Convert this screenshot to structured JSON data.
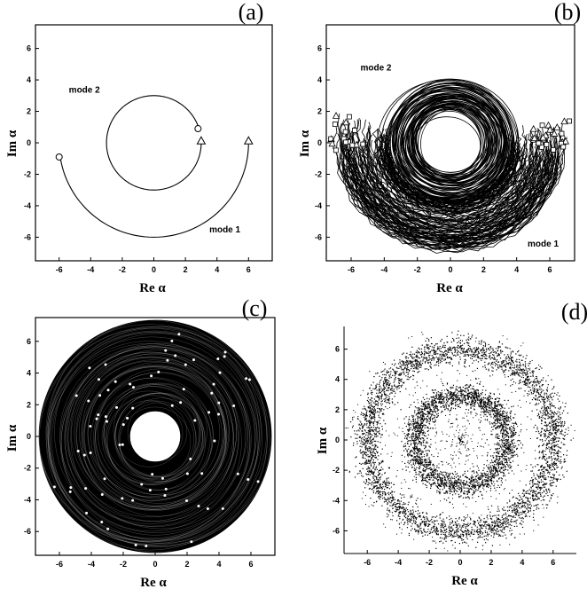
{
  "chart_data": [
    {
      "type": "line",
      "panel": "(a)",
      "xlabel": "Re α",
      "ylabel": "Im α",
      "xlim": [
        -7.5,
        7.5
      ],
      "ylim": [
        -7.5,
        7.5
      ],
      "xticks": [
        -6,
        -4,
        -2,
        0,
        2,
        4,
        6
      ],
      "yticks": [
        -6,
        -4,
        -2,
        0,
        2,
        4,
        6
      ],
      "series": [
        {
          "name": "mode 2",
          "shape": "arc",
          "center": [
            0,
            0
          ],
          "radius": 3,
          "start_deg": 20,
          "end_deg": 360,
          "start_marker": {
            "x": 2.8,
            "y": 0.9,
            "symbol": "circle"
          },
          "end_marker": {
            "x": 3.0,
            "y": 0.1,
            "symbol": "triangle"
          }
        },
        {
          "name": "mode 1",
          "shape": "arc",
          "center": [
            0,
            0
          ],
          "radius": 6,
          "start_deg": 189,
          "end_deg": 360,
          "start_marker": {
            "x": -6.0,
            "y": -0.9,
            "symbol": "circle"
          },
          "end_marker": {
            "x": 6.0,
            "y": 0.1,
            "symbol": "triangle"
          }
        }
      ],
      "annotations": [
        {
          "text": "mode 2",
          "x": -4.4,
          "y": 3.2
        },
        {
          "text": "mode 1",
          "x": 4.5,
          "y": -5.7
        }
      ]
    },
    {
      "type": "line",
      "panel": "(b)",
      "xlabel": "Re α",
      "ylabel": "Im α",
      "xlim": [
        -7.5,
        7.5
      ],
      "ylim": [
        -7.5,
        7.5
      ],
      "xticks": [
        -6,
        -4,
        -2,
        0,
        2,
        4,
        6
      ],
      "yticks": [
        -6,
        -4,
        -2,
        0,
        2,
        4,
        6
      ],
      "series": [
        {
          "name": "mode 2",
          "shape": "dense ring",
          "center": [
            0,
            0
          ],
          "inner_radius": 1.8,
          "outer_radius": 4.2
        },
        {
          "name": "mode 1",
          "shape": "dense lower band",
          "center": [
            0,
            0
          ],
          "inner_radius": 3.6,
          "outer_radius": 7.0,
          "from_deg": 180,
          "to_deg": 360
        }
      ],
      "annotations": [
        {
          "text": "mode 2",
          "x": -4.5,
          "y": 4.6
        },
        {
          "text": "mode 1",
          "x": 5.6,
          "y": -6.6
        }
      ]
    },
    {
      "type": "line",
      "panel": "(c)",
      "xlabel": "Re α",
      "ylabel": "Im α",
      "xlim": [
        -7.5,
        7.5
      ],
      "ylim": [
        -7.5,
        7.5
      ],
      "xticks": [
        -6,
        -4,
        -2,
        0,
        2,
        4,
        6
      ],
      "yticks": [
        -6,
        -4,
        -2,
        0,
        2,
        4,
        6
      ],
      "series": [
        {
          "shape": "dense filled annulus",
          "center": [
            0,
            0
          ],
          "inner_radius": 1.6,
          "outer_radius": 7.4
        }
      ]
    },
    {
      "type": "scatter",
      "panel": "(d)",
      "xlabel": "Re α",
      "ylabel": "Im α",
      "xlim": [
        -7.5,
        7.5
      ],
      "ylim": [
        -7.5,
        7.5
      ],
      "xticks": [
        -6,
        -4,
        -2,
        0,
        2,
        4,
        6
      ],
      "yticks": [
        -6,
        -4,
        -2,
        0,
        2,
        4,
        6
      ],
      "series": [
        {
          "shape": "point ring",
          "center": [
            0,
            0
          ],
          "mean_radius": 3.0,
          "spread": 0.7
        },
        {
          "shape": "point ring",
          "center": [
            0,
            0
          ],
          "mean_radius": 6.0,
          "spread": 0.8
        }
      ]
    }
  ]
}
